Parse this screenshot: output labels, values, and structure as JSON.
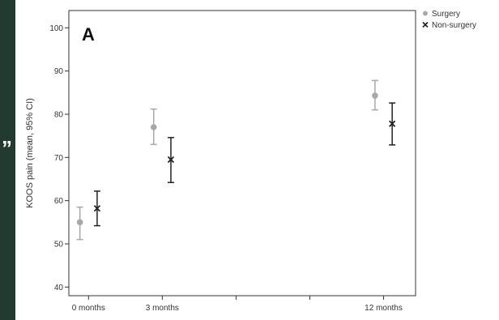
{
  "decor": {
    "quote_glyph": "”"
  },
  "chart_data": {
    "type": "scatter",
    "panel_label": "A",
    "title": "",
    "xlabel": "",
    "ylabel": "KOOS pain (mean, 95% CI)",
    "ylim": [
      38,
      104
    ],
    "yticks": [
      40,
      50,
      60,
      70,
      80,
      90,
      100
    ],
    "xlim": [
      -0.8,
      13.3
    ],
    "xticks": [
      {
        "value": 0,
        "label": "0 months"
      },
      {
        "value": 3,
        "label": "3 months"
      },
      {
        "value": 6,
        "label": ""
      },
      {
        "value": 9,
        "label": ""
      },
      {
        "value": 12,
        "label": "12 months"
      }
    ],
    "grid": false,
    "legend_position": "top-right-outside",
    "series": [
      {
        "name": "Surgery",
        "marker": "circle",
        "color": "#a8a8a8",
        "offset": -0.35,
        "points": [
          {
            "x": 0,
            "mean": 55,
            "lower": 51,
            "upper": 58.5
          },
          {
            "x": 3,
            "mean": 77,
            "lower": 73,
            "upper": 81.2
          },
          {
            "x": 12,
            "mean": 84.3,
            "lower": 81,
            "upper": 87.8
          }
        ]
      },
      {
        "name": "Non-surgery",
        "marker": "cross",
        "color": "#222222",
        "offset": 0.35,
        "points": [
          {
            "x": 0,
            "mean": 58.2,
            "lower": 54.2,
            "upper": 62.2
          },
          {
            "x": 3,
            "mean": 69.5,
            "lower": 64.2,
            "upper": 74.6
          },
          {
            "x": 12,
            "mean": 77.8,
            "lower": 72.9,
            "upper": 82.6
          }
        ]
      }
    ]
  }
}
